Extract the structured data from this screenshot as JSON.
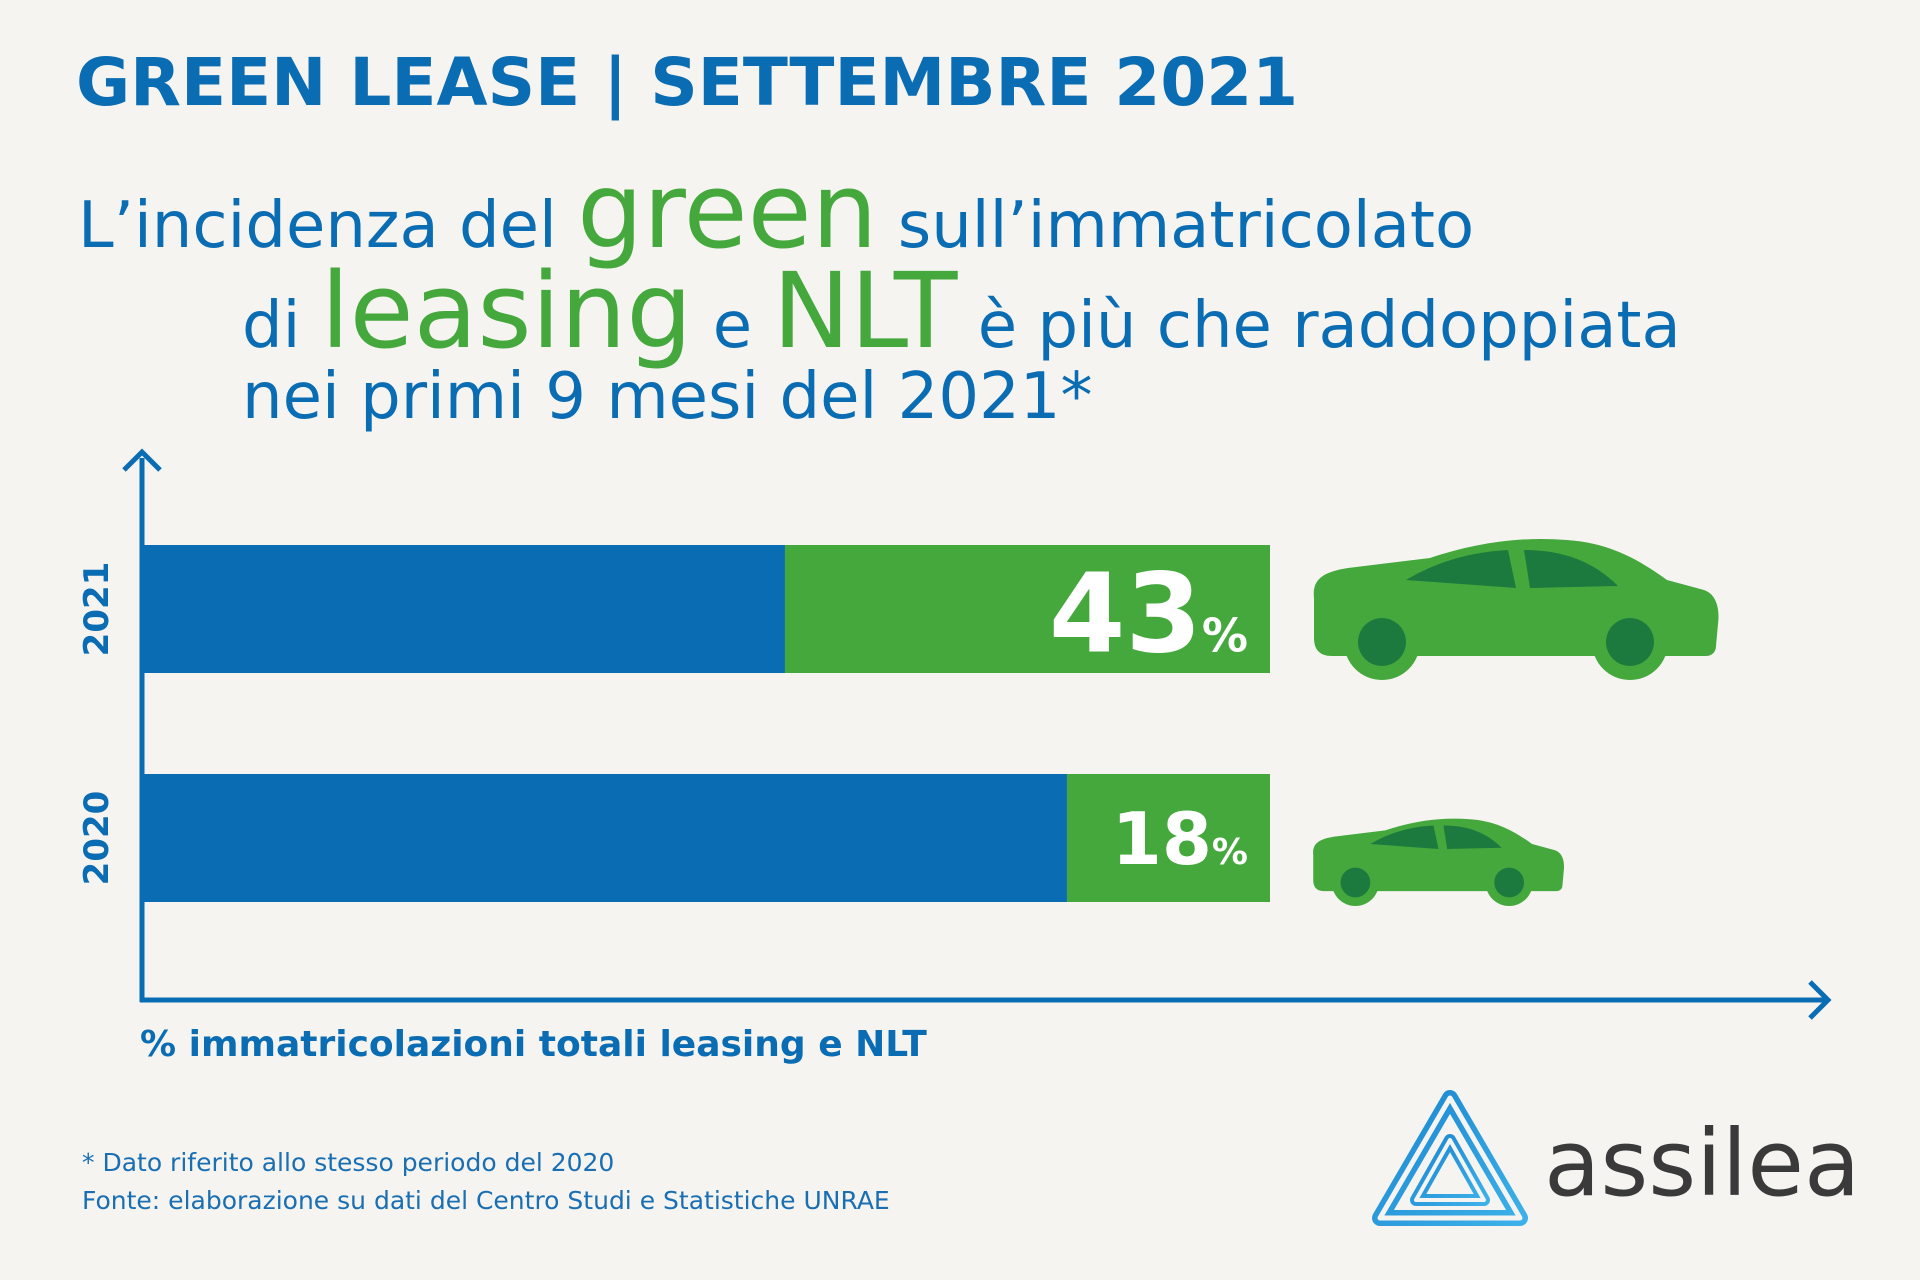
{
  "header": {
    "title": "GREEN LEASE | SETTEMBRE 2021"
  },
  "headline": {
    "l1a": "L’incidenza del ",
    "l1b": "green",
    "l1c": " sull’immatricolato",
    "l2a": "di ",
    "l2b": "leasing",
    "l2c": " e ",
    "l2d": "NLT",
    "l2e": " è più che raddoppiata",
    "l3": "nei primi 9 mesi del 2021*"
  },
  "chart_data": {
    "type": "bar",
    "orientation": "horizontal",
    "stacked": true,
    "categories": [
      "2021",
      "2020"
    ],
    "values": [
      43,
      18
    ],
    "value_suffix": "%",
    "xlabel": "% immatricolazioni totali leasing e NLT",
    "xlim": [
      0,
      100
    ],
    "colors": {
      "green": "#44a83c",
      "blue": "#0a6cb2"
    }
  },
  "footnotes": {
    "note": "* Dato riferito allo stesso periodo del 2020",
    "source": "Fonte: elaborazione su dati del Centro Studi e Statistiche UNRAE"
  },
  "brand": {
    "name": "assilea"
  },
  "colors": {
    "blue": "#0a6cb2",
    "green": "#44a83c",
    "car_green": "#45a83d",
    "car_dark": "#1c7a3e",
    "background": "#f5f4f1"
  }
}
